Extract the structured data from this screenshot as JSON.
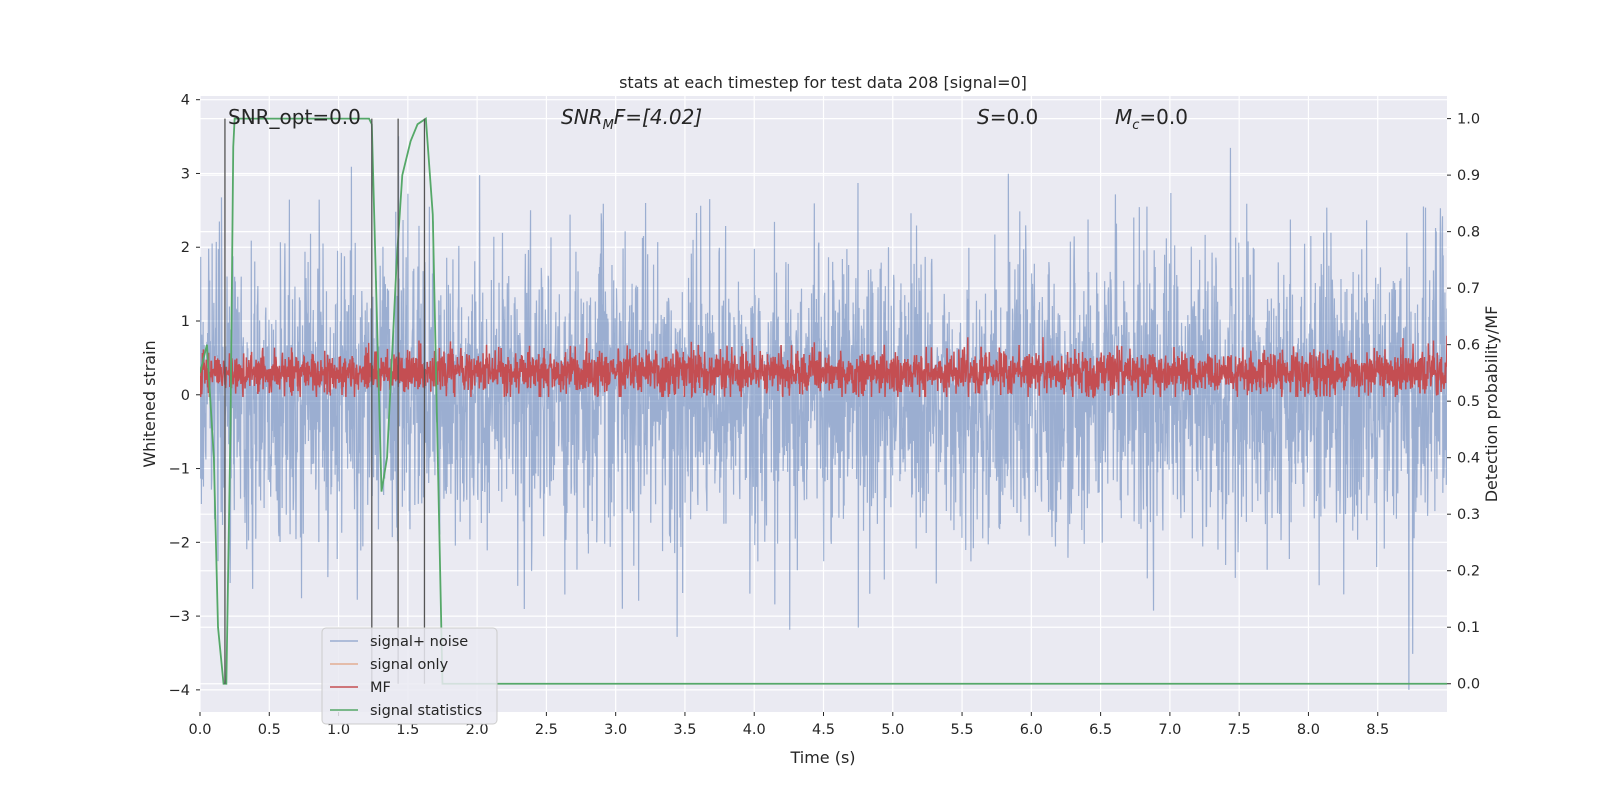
{
  "chart_data": {
    "type": "line",
    "title": "stats at each timestep for test data 208 [signal=0]",
    "xlabel": "Time (s)",
    "ylabel": "Whitened strain",
    "y2label": "Detection probability/MF",
    "xlim": [
      0,
      9.0
    ],
    "ylim": [
      -4.3,
      4.05
    ],
    "y2lim": [
      -0.05,
      1.04
    ],
    "x_ticks": [
      0.0,
      0.5,
      1.0,
      1.5,
      2.0,
      2.5,
      3.0,
      3.5,
      4.0,
      4.5,
      5.0,
      5.5,
      6.0,
      6.5,
      7.0,
      7.5,
      8.0,
      8.5
    ],
    "x_tick_labels": [
      "0.0",
      "0.5",
      "1.0",
      "1.5",
      "2.0",
      "2.5",
      "3.0",
      "3.5",
      "4.0",
      "4.5",
      "5.0",
      "5.5",
      "6.0",
      "6.5",
      "7.0",
      "7.5",
      "8.0",
      "8.5"
    ],
    "y_ticks": [
      -4,
      -3,
      -2,
      -1,
      0,
      1,
      2,
      3,
      4
    ],
    "y_tick_labels": [
      "−4",
      "−3",
      "−2",
      "−1",
      "0",
      "1",
      "2",
      "3",
      "4"
    ],
    "y2_ticks": [
      0.0,
      0.1,
      0.2,
      0.3,
      0.4,
      0.5,
      0.6,
      0.7,
      0.8,
      0.9,
      1.0
    ],
    "y2_tick_labels": [
      "0.0",
      "0.1",
      "0.2",
      "0.3",
      "0.4",
      "0.5",
      "0.6",
      "0.7",
      "0.8",
      "0.9",
      "1.0"
    ],
    "grid": true,
    "legend_position": "lower-left",
    "annotations": {
      "snr_opt": "SNR_opt=0.0",
      "snr_mf_sym": "SNR",
      "snr_mf_sub": "M",
      "snr_mf_rest": "F=[4.02]",
      "s_sym": "S",
      "s_rest": "=0.0",
      "mc_sym": "M",
      "mc_sub": "c",
      "mc_rest": "=0.0"
    },
    "series": [
      {
        "name": "signal+ noise",
        "color": "#4c72b0",
        "axis": "left",
        "style": "noise",
        "mean": 0.0,
        "std": 1.0,
        "x_range": [
          0,
          9.0
        ],
        "peak_max": 3.7,
        "peak_min": -4.0
      },
      {
        "name": "signal only",
        "color": "#dd8452",
        "axis": "left",
        "style": "flat",
        "values": []
      },
      {
        "name": "MF",
        "color": "#c44e52",
        "axis": "left",
        "style": "noise",
        "mean": 0.3,
        "std": 0.15,
        "x_range": [
          0,
          9.0
        ],
        "peak_max": 0.95,
        "peak_min": -0.03
      },
      {
        "name": "signal statistics",
        "color": "#55a868",
        "axis": "right",
        "style": "line",
        "x": [
          0.0,
          0.05,
          0.1,
          0.13,
          0.17,
          0.19,
          0.22,
          0.24,
          0.25,
          1.22,
          1.24,
          1.31,
          1.35,
          1.42,
          1.46,
          1.52,
          1.57,
          1.63,
          1.68,
          1.75,
          1.8,
          2.0,
          9.0
        ],
        "values": [
          0.55,
          0.6,
          0.4,
          0.1,
          0.0,
          0.0,
          0.45,
          0.95,
          1.0,
          1.0,
          0.99,
          0.34,
          0.4,
          0.75,
          0.9,
          0.96,
          0.99,
          1.0,
          0.83,
          0.0,
          0.0,
          0.0,
          0.0
        ]
      }
    ],
    "vertical_markers_x": [
      0.18,
      1.24,
      1.43,
      1.62
    ]
  }
}
